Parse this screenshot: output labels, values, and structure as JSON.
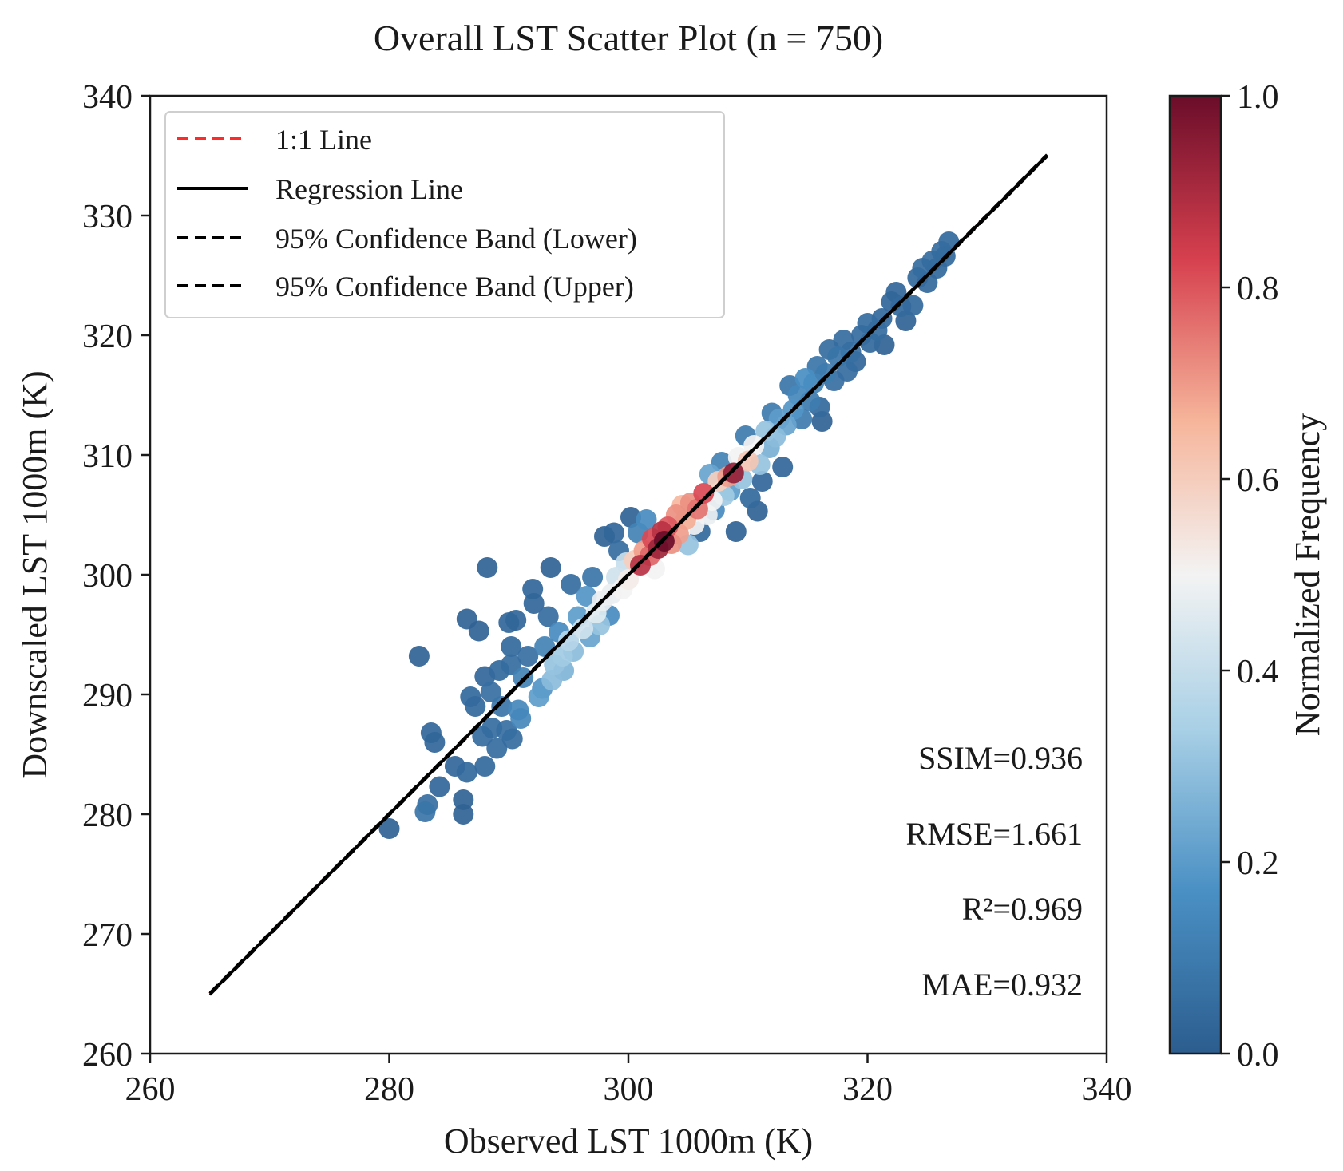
{
  "chart_data": {
    "type": "scatter",
    "title": "Overall LST Scatter Plot (n = 750)",
    "xlabel": "Observed LST 1000m (K)",
    "ylabel": "Downscaled LST 1000m (K)",
    "xlim": [
      260,
      340
    ],
    "ylim": [
      260,
      340
    ],
    "xticks": [
      "260",
      "280",
      "300",
      "320",
      "340"
    ],
    "yticks": [
      "260",
      "270",
      "280",
      "290",
      "300",
      "310",
      "320",
      "330",
      "340"
    ],
    "grid": false,
    "legend": {
      "placement": "top-left",
      "entries": [
        {
          "label": "1:1 Line",
          "color": "#ff2a2a",
          "style": "dashed"
        },
        {
          "label": "Regression Line",
          "color": "#000000",
          "style": "solid"
        },
        {
          "label": "95% Confidence Band (Lower)",
          "color": "#000000",
          "style": "dashed"
        },
        {
          "label": "95% Confidence Band (Upper)",
          "color": "#000000",
          "style": "dashed"
        }
      ]
    },
    "lines": {
      "one_to_one": {
        "x": [
          265,
          335
        ],
        "y": [
          265,
          335
        ]
      },
      "regression": {
        "x": [
          265,
          335
        ],
        "y": [
          265,
          335
        ]
      },
      "band_lower": {
        "x": [
          265,
          335
        ],
        "y": [
          264.9,
          334.9
        ]
      },
      "band_upper": {
        "x": [
          265,
          335
        ],
        "y": [
          265.1,
          335.1
        ]
      }
    },
    "metrics": [
      {
        "label": "SSIM=0.936"
      },
      {
        "label": "RMSE=1.661"
      },
      {
        "label": "R²=0.969"
      },
      {
        "label": "MAE=0.932"
      }
    ],
    "colorbar": {
      "label": "Normalized Frequency",
      "ticks": [
        "0.0",
        "0.2",
        "0.4",
        "0.6",
        "0.8",
        "1.0"
      ],
      "range": [
        0,
        1
      ],
      "colormap": [
        "#2c5d8f",
        "#4a90c4",
        "#a9d0e6",
        "#f3f3f3",
        "#f6b59b",
        "#d6404e",
        "#6b0d2a"
      ]
    },
    "points": [
      {
        "x": 280,
        "y": 278.8,
        "c": 0.02
      },
      {
        "x": 282.5,
        "y": 293.2,
        "c": 0.02
      },
      {
        "x": 283,
        "y": 280.2,
        "c": 0.08
      },
      {
        "x": 283.2,
        "y": 280.8,
        "c": 0.06
      },
      {
        "x": 283.5,
        "y": 286.8,
        "c": 0.03
      },
      {
        "x": 283.8,
        "y": 286,
        "c": 0.03
      },
      {
        "x": 284.2,
        "y": 282.3,
        "c": 0.03
      },
      {
        "x": 285.5,
        "y": 284,
        "c": 0.03
      },
      {
        "x": 286.2,
        "y": 281.2,
        "c": 0.02
      },
      {
        "x": 286.2,
        "y": 280,
        "c": 0.02
      },
      {
        "x": 286.5,
        "y": 283.5,
        "c": 0.04
      },
      {
        "x": 286.5,
        "y": 296.3,
        "c": 0.02
      },
      {
        "x": 286.8,
        "y": 289.8,
        "c": 0.04
      },
      {
        "x": 287.2,
        "y": 289,
        "c": 0.04
      },
      {
        "x": 287.5,
        "y": 295.3,
        "c": 0.02
      },
      {
        "x": 287.8,
        "y": 286.5,
        "c": 0.05
      },
      {
        "x": 288,
        "y": 284,
        "c": 0.04
      },
      {
        "x": 288,
        "y": 291.5,
        "c": 0.03
      },
      {
        "x": 288.2,
        "y": 300.6,
        "c": 0.02
      },
      {
        "x": 288.5,
        "y": 290.2,
        "c": 0.06
      },
      {
        "x": 288.6,
        "y": 287.2,
        "c": 0.05
      },
      {
        "x": 289,
        "y": 285.5,
        "c": 0.05
      },
      {
        "x": 289.2,
        "y": 292,
        "c": 0.04
      },
      {
        "x": 289.4,
        "y": 289,
        "c": 0.08
      },
      {
        "x": 289.8,
        "y": 287,
        "c": 0.06
      },
      {
        "x": 290,
        "y": 296,
        "c": 0.03
      },
      {
        "x": 290.2,
        "y": 294,
        "c": 0.04
      },
      {
        "x": 290.2,
        "y": 292.5,
        "c": 0.05
      },
      {
        "x": 290.3,
        "y": 286.3,
        "c": 0.05
      },
      {
        "x": 290.6,
        "y": 296.2,
        "c": 0.03
      },
      {
        "x": 290.8,
        "y": 288.7,
        "c": 0.14
      },
      {
        "x": 291,
        "y": 288,
        "c": 0.14
      },
      {
        "x": 291.2,
        "y": 291.4,
        "c": 0.12
      },
      {
        "x": 291.6,
        "y": 293.2,
        "c": 0.06
      },
      {
        "x": 292,
        "y": 298.8,
        "c": 0.03
      },
      {
        "x": 292.1,
        "y": 297.6,
        "c": 0.03
      },
      {
        "x": 292.5,
        "y": 289.8,
        "c": 0.2
      },
      {
        "x": 292.8,
        "y": 290.5,
        "c": 0.18
      },
      {
        "x": 293,
        "y": 294,
        "c": 0.12
      },
      {
        "x": 293.3,
        "y": 296.5,
        "c": 0.05
      },
      {
        "x": 293.5,
        "y": 300.6,
        "c": 0.02
      },
      {
        "x": 293.6,
        "y": 291.2,
        "c": 0.28
      },
      {
        "x": 293.8,
        "y": 292.5,
        "c": 0.3
      },
      {
        "x": 294.2,
        "y": 295.2,
        "c": 0.15
      },
      {
        "x": 294.5,
        "y": 293.2,
        "c": 0.32
      },
      {
        "x": 294.6,
        "y": 292,
        "c": 0.26
      },
      {
        "x": 295,
        "y": 294.5,
        "c": 0.36
      },
      {
        "x": 295.2,
        "y": 299.2,
        "c": 0.05
      },
      {
        "x": 295.4,
        "y": 293.6,
        "c": 0.28
      },
      {
        "x": 295.8,
        "y": 296.5,
        "c": 0.2
      },
      {
        "x": 296.2,
        "y": 295.5,
        "c": 0.42
      },
      {
        "x": 296.5,
        "y": 298.2,
        "c": 0.18
      },
      {
        "x": 296.8,
        "y": 294.8,
        "c": 0.22
      },
      {
        "x": 297,
        "y": 299.8,
        "c": 0.08
      },
      {
        "x": 297.3,
        "y": 296.8,
        "c": 0.46
      },
      {
        "x": 297.6,
        "y": 295.8,
        "c": 0.3
      },
      {
        "x": 297.8,
        "y": 297.8,
        "c": 0.48
      },
      {
        "x": 298,
        "y": 303.2,
        "c": 0.02
      },
      {
        "x": 298.4,
        "y": 296.6,
        "c": 0.15
      },
      {
        "x": 298.6,
        "y": 298.4,
        "c": 0.48
      },
      {
        "x": 298.8,
        "y": 303.5,
        "c": 0.03
      },
      {
        "x": 299,
        "y": 299.8,
        "c": 0.42
      },
      {
        "x": 299.2,
        "y": 302,
        "c": 0.05
      },
      {
        "x": 299.5,
        "y": 298.8,
        "c": 0.5
      },
      {
        "x": 299.8,
        "y": 301,
        "c": 0.4
      },
      {
        "x": 300,
        "y": 299.6,
        "c": 0.52
      },
      {
        "x": 300.2,
        "y": 304.8,
        "c": 0.02
      },
      {
        "x": 300.5,
        "y": 301.2,
        "c": 0.6
      },
      {
        "x": 300.8,
        "y": 303.5,
        "c": 0.12
      },
      {
        "x": 301,
        "y": 300.8,
        "c": 0.88
      },
      {
        "x": 301.3,
        "y": 302,
        "c": 0.7
      },
      {
        "x": 301.5,
        "y": 304.6,
        "c": 0.15
      },
      {
        "x": 301.8,
        "y": 301.6,
        "c": 0.78
      },
      {
        "x": 302,
        "y": 303,
        "c": 0.82
      },
      {
        "x": 302.2,
        "y": 300.5,
        "c": 0.5
      },
      {
        "x": 302.5,
        "y": 302.2,
        "c": 0.92
      },
      {
        "x": 302.8,
        "y": 303.6,
        "c": 0.88
      },
      {
        "x": 303,
        "y": 302.8,
        "c": 1.0
      },
      {
        "x": 303.3,
        "y": 304,
        "c": 0.8
      },
      {
        "x": 303.6,
        "y": 302.6,
        "c": 0.72
      },
      {
        "x": 304,
        "y": 305,
        "c": 0.72
      },
      {
        "x": 304.2,
        "y": 303.4,
        "c": 0.7
      },
      {
        "x": 304.5,
        "y": 305.8,
        "c": 0.66
      },
      {
        "x": 304.8,
        "y": 304.6,
        "c": 0.68
      },
      {
        "x": 305,
        "y": 302.5,
        "c": 0.3
      },
      {
        "x": 305.2,
        "y": 306,
        "c": 0.72
      },
      {
        "x": 305.5,
        "y": 304.2,
        "c": 0.5
      },
      {
        "x": 305.8,
        "y": 305.5,
        "c": 0.76
      },
      {
        "x": 306,
        "y": 303.6,
        "c": 0.04
      },
      {
        "x": 306.3,
        "y": 306.8,
        "c": 0.82
      },
      {
        "x": 306.6,
        "y": 305,
        "c": 0.48
      },
      {
        "x": 306.8,
        "y": 308.4,
        "c": 0.22
      },
      {
        "x": 307,
        "y": 306.2,
        "c": 0.5
      },
      {
        "x": 307.2,
        "y": 305.4,
        "c": 0.15
      },
      {
        "x": 307.5,
        "y": 307.8,
        "c": 0.6
      },
      {
        "x": 307.8,
        "y": 309.4,
        "c": 0.12
      },
      {
        "x": 308,
        "y": 306.6,
        "c": 0.32
      },
      {
        "x": 308.3,
        "y": 308.2,
        "c": 0.7
      },
      {
        "x": 308.5,
        "y": 307,
        "c": 0.2
      },
      {
        "x": 308.8,
        "y": 308.5,
        "c": 0.94
      },
      {
        "x": 309,
        "y": 303.6,
        "c": 0.02
      },
      {
        "x": 309.2,
        "y": 309.8,
        "c": 0.5
      },
      {
        "x": 309.5,
        "y": 308,
        "c": 0.3
      },
      {
        "x": 309.8,
        "y": 311.6,
        "c": 0.1
      },
      {
        "x": 310,
        "y": 309.5,
        "c": 0.62
      },
      {
        "x": 310.2,
        "y": 306.4,
        "c": 0.04
      },
      {
        "x": 310.5,
        "y": 310.8,
        "c": 0.5
      },
      {
        "x": 310.8,
        "y": 305.3,
        "c": 0.02
      },
      {
        "x": 311,
        "y": 309.2,
        "c": 0.3
      },
      {
        "x": 311.2,
        "y": 307.8,
        "c": 0.03
      },
      {
        "x": 311.5,
        "y": 312,
        "c": 0.3
      },
      {
        "x": 311.8,
        "y": 310.6,
        "c": 0.25
      },
      {
        "x": 312,
        "y": 313.5,
        "c": 0.1
      },
      {
        "x": 312.3,
        "y": 311.5,
        "c": 0.28
      },
      {
        "x": 312.6,
        "y": 313,
        "c": 0.2
      },
      {
        "x": 312.9,
        "y": 309,
        "c": 0.03
      },
      {
        "x": 313.2,
        "y": 312.5,
        "c": 0.22
      },
      {
        "x": 313.5,
        "y": 315.8,
        "c": 0.08
      },
      {
        "x": 313.8,
        "y": 313.8,
        "c": 0.18
      },
      {
        "x": 314.2,
        "y": 315,
        "c": 0.14
      },
      {
        "x": 314.5,
        "y": 313,
        "c": 0.1
      },
      {
        "x": 314.8,
        "y": 316.4,
        "c": 0.16
      },
      {
        "x": 315.2,
        "y": 314.5,
        "c": 0.1
      },
      {
        "x": 315.5,
        "y": 316,
        "c": 0.12
      },
      {
        "x": 315.8,
        "y": 317.4,
        "c": 0.08
      },
      {
        "x": 316,
        "y": 314,
        "c": 0.04
      },
      {
        "x": 316.2,
        "y": 312.8,
        "c": 0.02
      },
      {
        "x": 316.5,
        "y": 316.8,
        "c": 0.1
      },
      {
        "x": 316.8,
        "y": 318.8,
        "c": 0.05
      },
      {
        "x": 317.2,
        "y": 316.2,
        "c": 0.06
      },
      {
        "x": 317.5,
        "y": 318.2,
        "c": 0.08
      },
      {
        "x": 318,
        "y": 319.6,
        "c": 0.05
      },
      {
        "x": 318.3,
        "y": 317,
        "c": 0.05
      },
      {
        "x": 318.6,
        "y": 318.6,
        "c": 0.06
      },
      {
        "x": 319,
        "y": 317.8,
        "c": 0.03
      },
      {
        "x": 319.5,
        "y": 320,
        "c": 0.05
      },
      {
        "x": 320,
        "y": 321,
        "c": 0.05
      },
      {
        "x": 320.2,
        "y": 319.4,
        "c": 0.04
      },
      {
        "x": 320.8,
        "y": 320.4,
        "c": 0.05
      },
      {
        "x": 321.2,
        "y": 321.4,
        "c": 0.04
      },
      {
        "x": 321.4,
        "y": 319.2,
        "c": 0.02
      },
      {
        "x": 322,
        "y": 322.8,
        "c": 0.03
      },
      {
        "x": 322.4,
        "y": 323.6,
        "c": 0.03
      },
      {
        "x": 322.8,
        "y": 322.4,
        "c": 0.04
      },
      {
        "x": 323.2,
        "y": 321.2,
        "c": 0.02
      },
      {
        "x": 323.8,
        "y": 322.5,
        "c": 0.04
      },
      {
        "x": 324.2,
        "y": 324.8,
        "c": 0.04
      },
      {
        "x": 324.6,
        "y": 325.6,
        "c": 0.05
      },
      {
        "x": 325,
        "y": 324.4,
        "c": 0.04
      },
      {
        "x": 325.4,
        "y": 326.2,
        "c": 0.05
      },
      {
        "x": 325.8,
        "y": 325.6,
        "c": 0.04
      },
      {
        "x": 326.2,
        "y": 327,
        "c": 0.05
      },
      {
        "x": 326.5,
        "y": 326.6,
        "c": 0.04
      },
      {
        "x": 326.8,
        "y": 327.8,
        "c": 0.04
      }
    ]
  }
}
